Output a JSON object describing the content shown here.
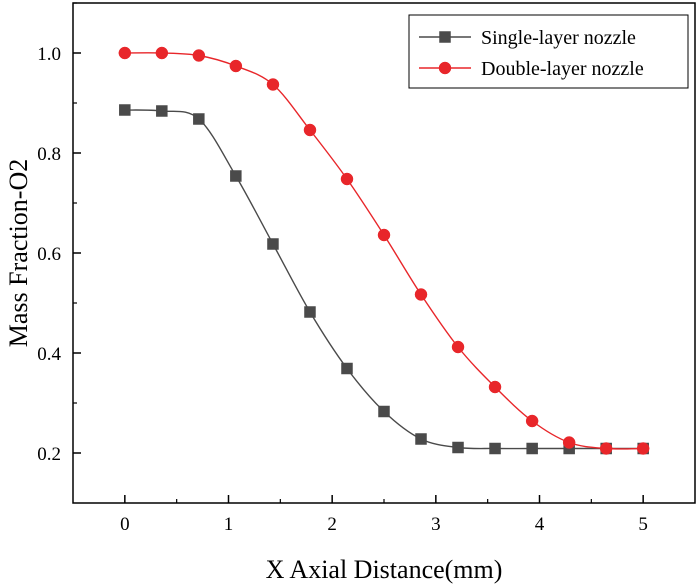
{
  "chart_data": {
    "type": "line",
    "title": "",
    "xlabel": "X Axial Distance(mm)",
    "ylabel": "Mass Fraction-O2",
    "xlim": [
      -0.5,
      5.5
    ],
    "ylim": [
      0.1,
      1.1
    ],
    "xticks": [
      0,
      1,
      2,
      3,
      4,
      5
    ],
    "yticks": [
      0.2,
      0.4,
      0.6,
      0.8,
      1.0
    ],
    "xtick_labels": [
      "0",
      "1",
      "2",
      "3",
      "4",
      "5"
    ],
    "ytick_labels": [
      "0.2",
      "0.4",
      "0.6",
      "0.8",
      "1.0"
    ],
    "grid": false,
    "legend_position": "top-right",
    "x": [
      0,
      0.357,
      0.714,
      1.071,
      1.429,
      1.786,
      2.143,
      2.5,
      2.857,
      3.214,
      3.571,
      3.929,
      4.286,
      4.643,
      5.0
    ],
    "series": [
      {
        "name": "Single-layer nozzle",
        "color": "#4a4a4a",
        "marker": "square",
        "values": [
          0.886,
          0.884,
          0.868,
          0.754,
          0.618,
          0.482,
          0.369,
          0.283,
          0.228,
          0.211,
          0.209,
          0.209,
          0.209,
          0.209,
          0.209
        ]
      },
      {
        "name": "Double-layer nozzle",
        "color": "#e8262a",
        "marker": "circle",
        "values": [
          1.0,
          1.0,
          0.995,
          0.974,
          0.937,
          0.846,
          0.748,
          0.636,
          0.517,
          0.412,
          0.332,
          0.264,
          0.221,
          0.209,
          0.209
        ]
      }
    ]
  }
}
